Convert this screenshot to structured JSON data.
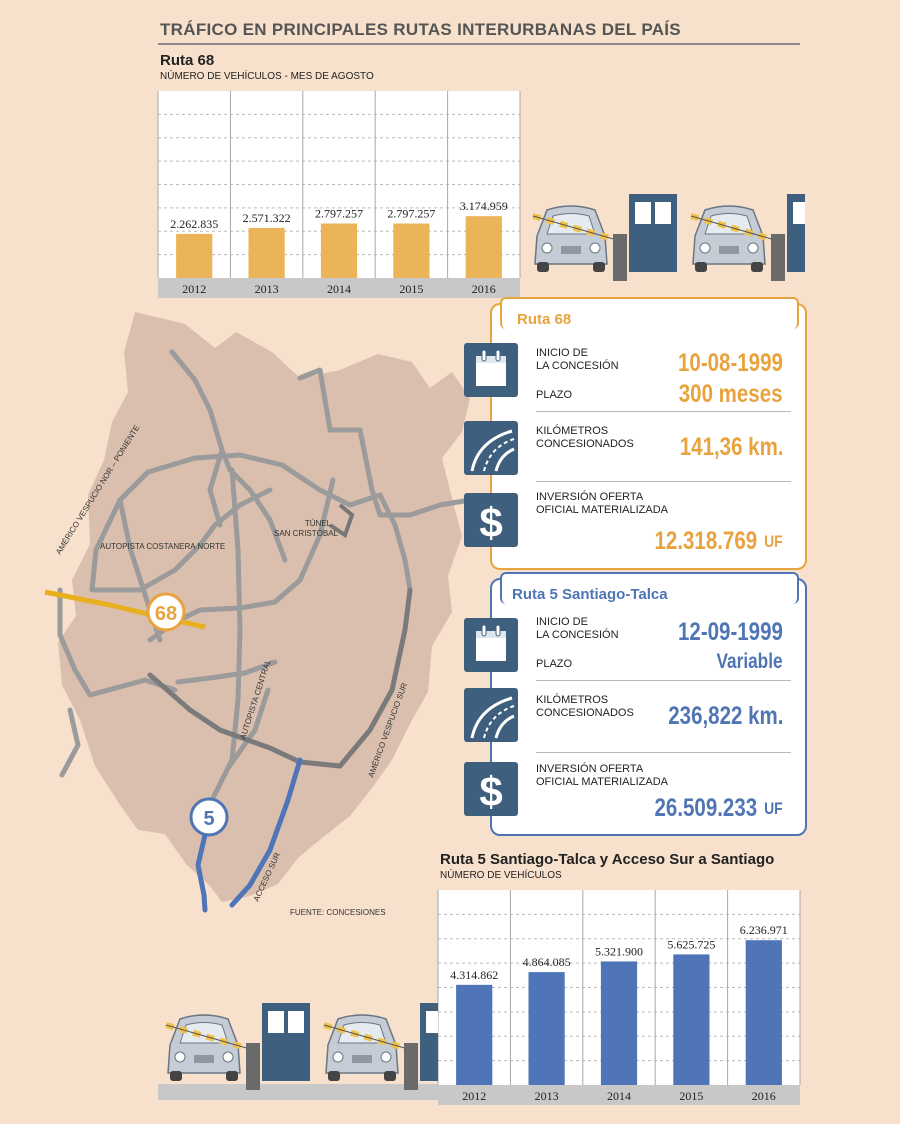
{
  "header": {
    "title": "TRÁFICO EN PRINCIPALES RUTAS INTERURBANAS DEL PAÍS"
  },
  "chart1": {
    "title": "Ruta 68",
    "subtitle": "NÚMERO DE VEHÍCULOS - MES DE AGOSTO"
  },
  "chart2": {
    "title": "Ruta 5 Santiago-Talca y Acceso Sur a Santiago",
    "subtitle": "NÚMERO DE VEHÍCULOS"
  },
  "chart_data": [
    {
      "type": "bar",
      "title": "Ruta 68",
      "subtitle": "NÚMERO DE VEHÍCULOS - MES DE AGOSTO",
      "categories": [
        "2012",
        "2013",
        "2014",
        "2015",
        "2016"
      ],
      "values": [
        2262835,
        2571322,
        2797257,
        2797257,
        3174959
      ],
      "value_labels": [
        "2.262.835",
        "2.571.322",
        "2.797.257",
        "2.797.257",
        "3.174.959"
      ],
      "ylim": [
        0,
        9600000
      ],
      "color": "#ecb458",
      "grid": true
    },
    {
      "type": "bar",
      "title": "Ruta 5 Santiago-Talca y Acceso Sur a Santiago",
      "subtitle": "NÚMERO DE VEHÍCULOS",
      "categories": [
        "2012",
        "2013",
        "2014",
        "2015",
        "2016"
      ],
      "values": [
        4314862,
        4864085,
        5321900,
        5625725,
        6236971
      ],
      "value_labels": [
        "4.314.862",
        "4.864.085",
        "5.321.900",
        "5.625.725",
        "6.236.971"
      ],
      "ylim": [
        0,
        8400000
      ],
      "color": "#4f75b8",
      "grid": true
    }
  ],
  "ruta68": {
    "title": "Ruta 68",
    "inicio_label": "INICIO DE\nLA CONCESIÓN",
    "inicio_value": "10-08-1999",
    "plazo_label": "PLAZO",
    "plazo_value": "300 meses",
    "km_label": "KILÓMETROS\nCONCESIONADOS",
    "km_value": "141,36 km.",
    "inv_label": "INVERSIÓN OFERTA\nOFICIAL MATERIALIZADA",
    "inv_value": "12.318.769",
    "inv_unit": "UF"
  },
  "ruta5": {
    "title": "Ruta 5 Santiago-Talca",
    "inicio_label": "INICIO DE\nLA CONCESIÓN",
    "inicio_value": "12-09-1999",
    "plazo_label": "PLAZO",
    "plazo_value": "Variable",
    "km_label": "KILÓMETROS\nCONCESIONADOS",
    "km_value": "236,822 km.",
    "inv_label": "INVERSIÓN OFERTA\nOFICIAL MATERIALIZADA",
    "inv_value": "26.509.233",
    "inv_unit": "UF"
  },
  "map": {
    "labels": {
      "vespucio_norponiente": "AMÉRICO VESPUCIO NOR – PONIENTE",
      "costanera": "AUTOPISTA COSTANERA NORTE",
      "tunel": "TÚNEL\nSAN CRISTÓBAL",
      "central": "AUTOPISTA CENTRAL",
      "vespucio_sur": "AMÉRICO VESPUCIO SUR",
      "acceso_sur": "ACCESO SUR",
      "badge68": "68",
      "badge5": "5"
    },
    "source": "FUENTE: CONCESIONES"
  },
  "colors": {
    "orange": "#e8a33e",
    "blue": "#4f75b4",
    "slate": "#3f5f7e",
    "background": "#f7e0cc"
  }
}
